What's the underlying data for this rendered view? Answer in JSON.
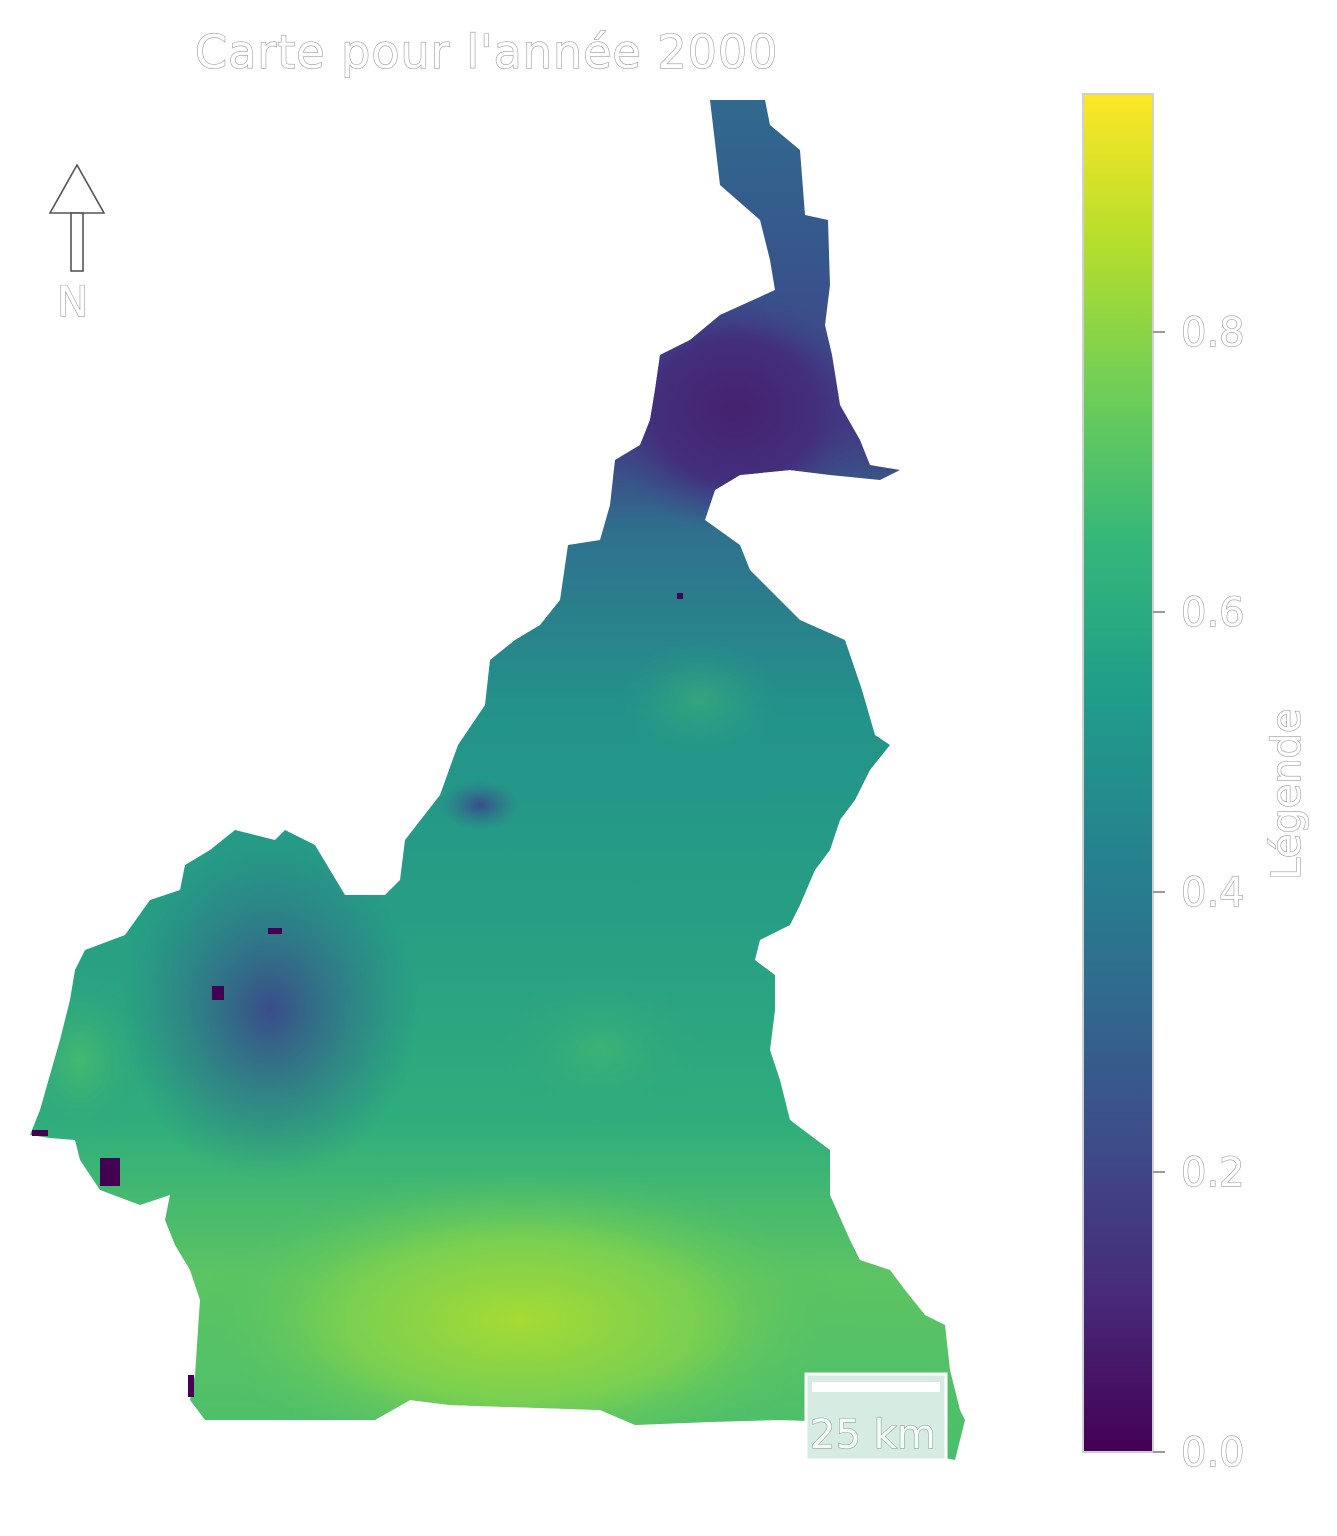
{
  "map": {
    "title": "Carte pour l'année 2000",
    "north_label": "N",
    "scale_label": "25 km"
  },
  "legend": {
    "title": "Légende",
    "ticks": [
      "0.0",
      "0.2",
      "0.4",
      "0.6",
      "0.8"
    ],
    "tick_values": [
      0.0,
      0.2,
      0.4,
      0.6,
      0.8
    ],
    "range": [
      0.0,
      0.97
    ],
    "colormap": "viridis",
    "colors": [
      "#440154",
      "#482878",
      "#3e4a89",
      "#31688e",
      "#26828e",
      "#1f9e89",
      "#35b779",
      "#6ece58",
      "#b5de2b",
      "#fde725"
    ]
  }
}
